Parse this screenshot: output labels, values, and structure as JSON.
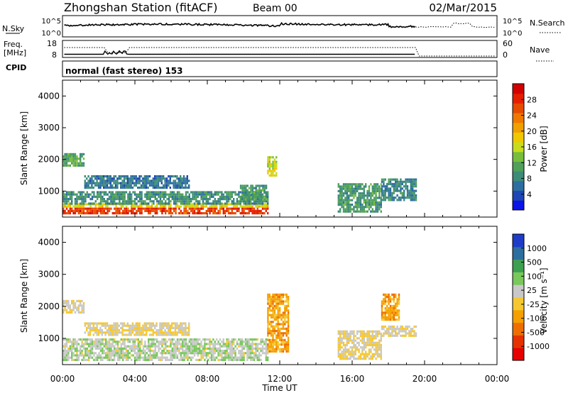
{
  "header": {
    "station": "Zhongshan Station (fitACF)",
    "beam": "Beam 00",
    "date": "02/Mar/2015"
  },
  "top_panels": {
    "nsky_label": "N.Sky",
    "nsearch_label": "N.Search",
    "power_ticks": [
      "10^5",
      "10^0"
    ],
    "freq_label": "Freq.",
    "freq_unit": "[MHz]",
    "freq_ticks": [
      "18",
      "8"
    ],
    "nave_label": "Nave",
    "nave_ticks": [
      "60",
      "0"
    ],
    "cpid_label": "CPID",
    "cpid_text": "normal (fast stereo) 153"
  },
  "chart_data": [
    {
      "type": "heatmap",
      "title": "",
      "ylabel": "Slant Range [km]",
      "xlabel": "",
      "ylim": [
        180,
        4500
      ],
      "y_ticks": [
        1000,
        2000,
        3000,
        4000
      ],
      "colorbar_label": "Power [dB]",
      "colorbar_ticks": [
        "28",
        "24",
        "20",
        "16",
        "12",
        "8",
        "4"
      ],
      "colormap": [
        "#0a14e6",
        "#1e46b4",
        "#2d6ea0",
        "#3c8c78",
        "#50a05a",
        "#78be3c",
        "#c8dc1e",
        "#f0c800",
        "#f0a000",
        "#f07800",
        "#e64b00",
        "#e61e00",
        "#d20000"
      ],
      "clim": [
        0,
        32
      ],
      "echo_regions": [
        {
          "t": [
            0.0,
            11.3
          ],
          "r": [
            300,
            480
          ],
          "value": 27
        },
        {
          "t": [
            0.0,
            11.3
          ],
          "r": [
            480,
            620
          ],
          "value": 18
        },
        {
          "t": [
            0.0,
            11.3
          ],
          "r": [
            620,
            1000
          ],
          "value": 9
        },
        {
          "t": [
            0.0,
            1.2
          ],
          "r": [
            1800,
            2200
          ],
          "value": 11
        },
        {
          "t": [
            1.2,
            7.0
          ],
          "r": [
            1100,
            1500
          ],
          "value": 7
        },
        {
          "t": [
            9.8,
            11.3
          ],
          "r": [
            700,
            1200
          ],
          "value": 10
        },
        {
          "t": [
            11.3,
            11.8
          ],
          "r": [
            1500,
            2100
          ],
          "value": 16
        },
        {
          "t": [
            15.2,
            17.6
          ],
          "r": [
            380,
            1250
          ],
          "value": 10
        },
        {
          "t": [
            17.6,
            19.5
          ],
          "r": [
            700,
            1400
          ],
          "value": 8
        }
      ]
    },
    {
      "type": "heatmap",
      "title": "",
      "ylabel": "Slant Range [km]",
      "xlabel": "Time UT",
      "ylim": [
        180,
        4500
      ],
      "y_ticks": [
        1000,
        2000,
        3000,
        4000
      ],
      "x_ticks": [
        "00:00",
        "04:00",
        "08:00",
        "12:00",
        "16:00",
        "20:00",
        "00:00"
      ],
      "colorbar_label": "Velocity [m s⁻¹]",
      "colorbar_ticks": [
        "1000",
        "500",
        "100",
        "25",
        "-25",
        "-100",
        "-500",
        "-1000"
      ],
      "colormap": [
        "#e60000",
        "#e63200",
        "#ef6e00",
        "#f5a000",
        "#f5c832",
        "#c8c8c8",
        "#78c85a",
        "#3ca050",
        "#2d6ea0",
        "#1e3cc8"
      ],
      "clim": [
        -1000,
        1000
      ],
      "echo_regions": [
        {
          "t": [
            0.0,
            11.3
          ],
          "r": [
            300,
            1000
          ],
          "value": 150
        },
        {
          "t": [
            0.0,
            1.2
          ],
          "r": [
            1800,
            2200
          ],
          "value": 20
        },
        {
          "t": [
            1.2,
            7.0
          ],
          "r": [
            1100,
            1500
          ],
          "value": 0
        },
        {
          "t": [
            11.3,
            12.5
          ],
          "r": [
            600,
            2400
          ],
          "value": -300
        },
        {
          "t": [
            15.2,
            17.6
          ],
          "r": [
            380,
            1250
          ],
          "value": -10
        },
        {
          "t": [
            17.6,
            18.6
          ],
          "r": [
            1600,
            2400
          ],
          "value": -300
        },
        {
          "t": [
            17.6,
            19.5
          ],
          "r": [
            1100,
            1400
          ],
          "value": 5
        }
      ]
    }
  ]
}
